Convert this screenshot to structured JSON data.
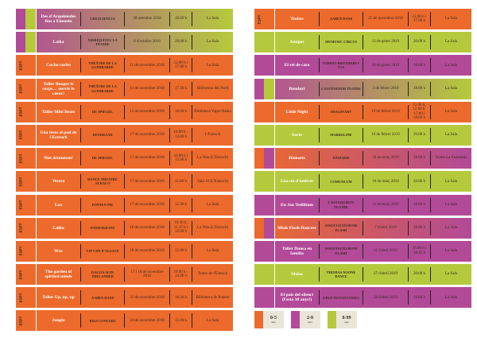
{
  "colors": {
    "orange": "#ec6a2c",
    "purple": "#b24a98",
    "green": "#b4ca3c"
  },
  "left": [
    {
      "title": "Des d'Arquímedes fins a Einstein",
      "company": "CREACIENCIA",
      "date": "30 setembre 2018",
      "time": "18.00 h",
      "venue": "La Sala",
      "b1": "purple",
      "b2": "green",
      "bg": [
        "purple",
        "green"
      ],
      "badge": ""
    },
    {
      "title": "Laika",
      "company": "XIRRIQUITEU LA TEATRE",
      "date": "6 d'octubre 2018",
      "time": "20.00 h",
      "venue": "La Sala",
      "b1": "purple",
      "b2": "green",
      "bg": [
        "purple",
        "green"
      ],
      "badge": ""
    },
    {
      "title": "Cucho cucho",
      "company": "THÉÂTRE DE LA GUIMBARDE",
      "date": "11 de novembre 2018",
      "time": "12.00 h i 17.00 h",
      "venue": "La Sala",
      "b1": "orange",
      "b2": "orange",
      "bg": [
        "orange",
        "orange"
      ],
      "badge": "ESPT"
    },
    {
      "title": "Taller Bouger le corps… ouvrir le coeur!",
      "company": "THÉÂTRE DE LA GUIMBARDE",
      "date": "13 de novembre 2018",
      "time": "17.30 h",
      "venue": "Biblioteca del Nord",
      "b1": "orange",
      "b2": "orange",
      "bg": [
        "orange",
        "orange"
      ],
      "badge": "ESPT"
    },
    {
      "title": "Taller Mini Beats",
      "company": "DE SPIEGEL",
      "date": "15 de novembre 2018",
      "time": "18.00 h",
      "venue": "Biblioteca Vapor Badia",
      "b1": "orange",
      "b2": "orange",
      "bg": [
        "orange",
        "orange"
      ],
      "badge": "ESPT"
    },
    {
      "title": "Una festa al pati de l'Estruch",
      "company": "DENDRAAD",
      "date": "17 de novembre 2018",
      "time": "10.00 h - 14.00 h",
      "venue": "L'Estruch",
      "b1": "orange",
      "b2": "orange",
      "bg": [
        "orange",
        "orange"
      ],
      "badge": "ESPT"
    },
    {
      "title": "Niet drummen!",
      "company": "DE SPIEGEL",
      "date": "17 de novembre 2018",
      "time": "10.00 h i 12.00 h",
      "venue": "La Vela (L'Estruch)",
      "b1": "orange",
      "b2": "orange",
      "bg": [
        "orange",
        "orange"
      ],
      "badge": "ESPT"
    },
    {
      "title": "Tesoro",
      "company": "DANCE THEATRE AURACO",
      "date": "17 de novembre 2018",
      "time": "11.00 h",
      "venue": "Sala 10 (L'Estruch)",
      "b1": "orange",
      "b2": "orange",
      "bg": [
        "orange",
        "orange"
      ],
      "badge": "ESPT"
    },
    {
      "title": "Loo",
      "company": "PONTEN PIE",
      "date": "17 de novembre 2018",
      "time": "12.30 h",
      "venue": "La Sala",
      "b1": "orange",
      "b2": "orange",
      "bg": [
        "orange",
        "orange"
      ],
      "badge": "ESPT"
    },
    {
      "title": "Lullia",
      "company": "DYBWIKDANS",
      "date": "18 de novembre 2018",
      "time": "10.30 h, 11.15 h i 12.00 h",
      "venue": "La Vela (L'Estruch)",
      "b1": "orange",
      "b2": "orange",
      "bg": [
        "orange",
        "orange"
      ],
      "badge": "ESPT"
    },
    {
      "title": "Wax",
      "company": "TJP CDN D'ALSACE",
      "date": "18 de novembre 2018",
      "time": "12.00 h",
      "venue": "La Sala",
      "b1": "orange",
      "b2": "orange",
      "bg": [
        "orange",
        "orange"
      ],
      "badge": "ESPT"
    },
    {
      "title": "The garden of spirited minds",
      "company": "DALIJA ACIN THELANDER",
      "date": "17 i 18 de novembre 2018",
      "time": "10.00 h - 14.00 h",
      "venue": "Teatre de l'Estruch",
      "b1": "orange",
      "b2": "orange",
      "bg": [
        "orange",
        "orange"
      ],
      "badge": "ESPT"
    },
    {
      "title": "Taller Up, up, up",
      "company": "AABEN DANS",
      "date": "21 de novembre 2018",
      "time": "18.30 h",
      "venue": "Biblioteca de Ponent",
      "b1": "orange",
      "b2": "orange",
      "bg": [
        "orange",
        "orange"
      ],
      "badge": "ESPT"
    },
    {
      "title": "Jungla",
      "company": "BIGS CONCERS",
      "date": "24 de novembre 2018",
      "time": "12.00 h",
      "venue": "La Sala",
      "b1": "orange",
      "b2": "orange",
      "bg": [
        "orange",
        "orange"
      ],
      "badge": "ESPT"
    }
  ],
  "right": [
    {
      "title": "Trobes",
      "company": "AABEN DANS",
      "date": "25 de novembre 2018",
      "time": "12.00 h i 17.00 h",
      "venue": "La Sala",
      "b1": "orange",
      "b2": "orange",
      "bg": [
        "orange",
        "orange"
      ],
      "badge": "ESPT"
    },
    {
      "title": "Amigos",
      "company": "MUMUSIC CIRCUS",
      "date": "12 de gener 2019",
      "time": "20.00 h",
      "venue": "La Sala",
      "b1": "green",
      "b2": "green",
      "bg": [
        "green",
        "green"
      ],
      "badge": ""
    },
    {
      "title": "El rei de casa",
      "company": "FARRÉS BROTHERS I CIA",
      "date": "20 de gener 2019",
      "time": "18.00 h",
      "venue": "La Sala",
      "b1": "purple",
      "b2": "purple",
      "bg": [
        "purple",
        "purple"
      ],
      "badge": ""
    },
    {
      "title": "Bonduri",
      "company": "L'ESTENEDOR TEATRE",
      "date": "3 de febrer 2019",
      "time": "18.00 h",
      "venue": "La Sala",
      "b1": "purple",
      "b2": "green",
      "bg": [
        "purple",
        "green"
      ],
      "badge": ""
    },
    {
      "title": "Little Night",
      "company": "IMAGINART",
      "date": "10 de febrer 2019",
      "time": "11.00 h, 12.00 h, 17.00 i 18.00 h",
      "venue": "La Sala",
      "b1": "orange",
      "b2": "orange",
      "bg": [
        "orange",
        "orange"
      ],
      "badge": ""
    },
    {
      "title": "Sorte",
      "company": "MARKELIÑE",
      "date": "16 de febrer 2019",
      "time": "20.00 h",
      "venue": "La Sala",
      "b1": "green",
      "b2": "green",
      "bg": [
        "green",
        "green"
      ],
      "badge": ""
    },
    {
      "title": "Dàmaris",
      "company": "DÀMARIS",
      "date": "10 de març 2019",
      "time": "18.00 h",
      "venue": "Teatre La Faràndula",
      "b1": "orange",
      "b2": "purple",
      "bg": [
        "orange",
        "purple"
      ],
      "badge": ""
    },
    {
      "title": "Una nit d'ombres",
      "company": "COMUNLUM",
      "date": "16 de març 2019",
      "time": "20.00 h",
      "venue": "La Sala",
      "b1": "green",
      "b2": "green",
      "bg": [
        "green",
        "green"
      ],
      "badge": ""
    },
    {
      "title": "En Jan Tediltiam",
      "company": "L'ESTAQUIROT TEATRE",
      "date": "31 de març 2019",
      "time": "18.00 h",
      "venue": "La Sala",
      "b1": "purple",
      "b2": "purple",
      "bg": [
        "purple",
        "purple"
      ],
      "badge": ""
    },
    {
      "title": "Mink Flash Dancers",
      "company": "ASSOCIACIÓ BUNK FLASH",
      "date": "7 d'abril 2019",
      "time": "18.00 h",
      "venue": "La Sala",
      "b1": "orange",
      "b2": "purple",
      "bg": [
        "orange",
        "purple"
      ],
      "badge": ""
    },
    {
      "title": "Taller Dansa en família",
      "company": "ASSOCIACIÓ BUNK FLASH",
      "date": "11 d'abril 2019",
      "time": "18.00 h i 18.45 h",
      "venue": "La Sala",
      "b1": "purple",
      "b2": "purple",
      "bg": [
        "purple",
        "purple"
      ],
      "badge": ""
    },
    {
      "title": "Molso",
      "company": "THOMAS NOONE DANCE",
      "date": "27 d'abril 2019",
      "time": "20.00 h",
      "venue": "La Sala",
      "b1": "green",
      "b2": "green",
      "bg": [
        "green",
        "green"
      ],
      "badge": ""
    },
    {
      "title": "El país del silenci (Festa 30 anys!)",
      "company": "GRUP INSTANTÀNIES",
      "date": "28 d'abril 2019",
      "time": "18.00 h",
      "venue": "La Sala",
      "b1": "purple",
      "b2": "purple",
      "bg": [
        "purple",
        "purple"
      ],
      "badge": ""
    }
  ],
  "legend": [
    {
      "range": "0-5",
      "unit": "anys",
      "color": "orange"
    },
    {
      "range": "2-8",
      "unit": "anys",
      "color": "purple"
    },
    {
      "range": "8-99",
      "unit": "anys",
      "color": "green"
    }
  ]
}
